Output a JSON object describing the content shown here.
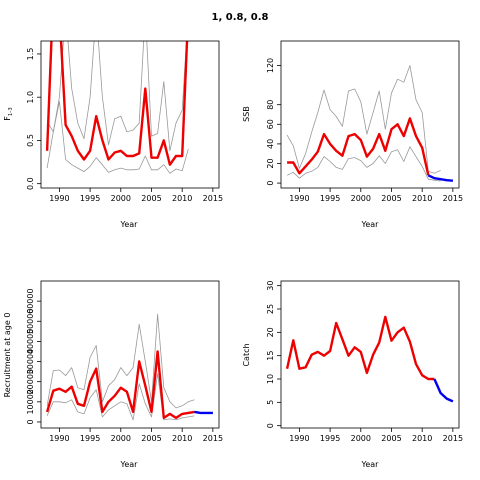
{
  "title": "1, 0.8, 0.8",
  "colors": {
    "estimate": "#ee0000",
    "projection": "#0000ee",
    "bounds": "#999999",
    "frame": "#000000"
  },
  "chart_data": [
    {
      "type": "line",
      "ylabel": "F",
      "ylabel_sub": "1–3",
      "xlabel": "Year",
      "xlim": [
        1987,
        2016
      ],
      "ylim": [
        -0.05,
        1.65
      ],
      "x_ticks": [
        1990,
        1995,
        2000,
        2005,
        2010,
        2015
      ],
      "y_ticks": [
        0.0,
        0.5,
        1.0,
        1.5
      ],
      "y_tick_labels": [
        "0.0",
        "0.5",
        "1.0",
        "1.5"
      ],
      "series": [
        {
          "role": "estimate",
          "x": [
            1988,
            1989,
            1990,
            1991,
            1992,
            1993,
            1994,
            1995,
            1996,
            1997,
            1998,
            1999,
            2000,
            2001,
            2002,
            2003,
            2004,
            2005,
            2006,
            2007,
            2008,
            2009,
            2010,
            2011
          ],
          "y": [
            0.38,
            2.2,
            2.0,
            0.68,
            0.55,
            0.38,
            0.28,
            0.38,
            0.78,
            0.5,
            0.28,
            0.36,
            0.38,
            0.32,
            0.32,
            0.35,
            1.1,
            0.3,
            0.3,
            0.5,
            0.22,
            0.32,
            0.32,
            2.0
          ]
        },
        {
          "role": "upper",
          "x": [
            1988,
            1989,
            1990,
            1991,
            1992,
            1993,
            1994,
            1995,
            1996,
            1997,
            1998,
            1999,
            2000,
            2001,
            2002,
            2003,
            2004,
            2005,
            2006,
            2007,
            2008,
            2009,
            2010,
            2011
          ],
          "y": [
            0.72,
            0.6,
            1.0,
            2.0,
            1.1,
            0.7,
            0.52,
            1.0,
            2.0,
            1.0,
            0.45,
            0.75,
            0.78,
            0.6,
            0.62,
            0.7,
            2.0,
            0.55,
            0.58,
            1.18,
            0.38,
            0.7,
            0.85,
            2.0
          ]
        },
        {
          "role": "lower",
          "x": [
            1988,
            1989,
            1990,
            1991,
            1992,
            1993,
            1994,
            1995,
            1996,
            1997,
            1998,
            1999,
            2000,
            2001,
            2002,
            2003,
            2004,
            2005,
            2006,
            2007,
            2008,
            2009,
            2010,
            2011
          ],
          "y": [
            0.18,
            0.6,
            0.95,
            0.28,
            0.22,
            0.18,
            0.14,
            0.2,
            0.3,
            0.22,
            0.13,
            0.16,
            0.18,
            0.16,
            0.16,
            0.17,
            0.32,
            0.16,
            0.16,
            0.22,
            0.12,
            0.17,
            0.15,
            0.4
          ]
        }
      ]
    },
    {
      "type": "line",
      "ylabel": "SSB",
      "xlabel": "Year",
      "xlim": [
        1987,
        2016
      ],
      "ylim": [
        -5,
        145
      ],
      "x_ticks": [
        1990,
        1995,
        2000,
        2005,
        2010,
        2015
      ],
      "y_ticks": [
        0,
        20,
        40,
        60,
        80,
        120
      ],
      "y_tick_labels": [
        "0",
        "20",
        "40",
        "60",
        "80",
        "120"
      ],
      "series": [
        {
          "role": "estimate",
          "x": [
            1988,
            1989,
            1990,
            1991,
            1992,
            1993,
            1994,
            1995,
            1996,
            1997,
            1998,
            1999,
            2000,
            2001,
            2002,
            2003,
            2004,
            2005,
            2006,
            2007,
            2008,
            2009,
            2010,
            2011
          ],
          "y": [
            21,
            21,
            10,
            17,
            24,
            32,
            50,
            40,
            33,
            28,
            48,
            50,
            44,
            27,
            35,
            50,
            33,
            55,
            60,
            48,
            66,
            48,
            36,
            8
          ]
        },
        {
          "role": "projection",
          "x": [
            2011,
            2012,
            2013,
            2014,
            2015
          ],
          "y": [
            8,
            5,
            4,
            3,
            2.5
          ]
        },
        {
          "role": "upper",
          "x": [
            1988,
            1989,
            1990,
            1991,
            1992,
            1993,
            1994,
            1995,
            1996,
            1997,
            1998,
            1999,
            2000,
            2001,
            2002,
            2003,
            2004,
            2005,
            2006,
            2007,
            2008,
            2009,
            2010,
            2011,
            2012,
            2013
          ],
          "y": [
            49,
            38,
            15,
            30,
            52,
            72,
            95,
            75,
            68,
            58,
            94,
            96,
            83,
            50,
            72,
            94,
            55,
            92,
            106,
            103,
            120,
            85,
            72,
            12,
            10,
            13
          ]
        },
        {
          "role": "lower",
          "x": [
            1988,
            1989,
            1990,
            1991,
            1992,
            1993,
            1994,
            1995,
            1996,
            1997,
            1998,
            1999,
            2000,
            2001,
            2002,
            2003,
            2004,
            2005,
            2006,
            2007,
            2008,
            2009,
            2010,
            2011,
            2012,
            2013
          ],
          "y": [
            8,
            11,
            5,
            10,
            12,
            16,
            27,
            22,
            16,
            14,
            25,
            26,
            23,
            16,
            20,
            28,
            20,
            32,
            34,
            22,
            37,
            27,
            17,
            4,
            3,
            2
          ]
        }
      ]
    },
    {
      "type": "line",
      "ylabel": "Recruitment at age 0",
      "xlabel": "Year",
      "xlim": [
        1987,
        2016
      ],
      "ylim": [
        -3000,
        70000
      ],
      "x_ticks": [
        1990,
        1995,
        2000,
        2005,
        2010,
        2015
      ],
      "y_ticks": [
        0,
        10000,
        20000,
        30000,
        40000,
        50000,
        60000
      ],
      "y_tick_labels": [
        "0",
        "10000",
        "20000",
        "30000",
        "40000",
        "50000",
        "60000"
      ],
      "series": [
        {
          "role": "estimate",
          "x": [
            1988,
            1989,
            1990,
            1991,
            1992,
            1993,
            1994,
            1995,
            1996,
            1997,
            1998,
            1999,
            2000,
            2001,
            2002,
            2003,
            2004,
            2005,
            2006,
            2007,
            2008,
            2009,
            2010,
            2011,
            2012
          ],
          "y": [
            5000,
            15500,
            16500,
            15000,
            17500,
            9000,
            8000,
            20000,
            26500,
            5000,
            10000,
            13000,
            17000,
            15000,
            5000,
            30000,
            18000,
            5000,
            35000,
            2000,
            4000,
            2000,
            4000,
            4500,
            5000
          ]
        },
        {
          "role": "projection",
          "x": [
            2012,
            2013,
            2014,
            2015
          ],
          "y": [
            5000,
            4500,
            4500,
            4500
          ]
        },
        {
          "role": "upper",
          "x": [
            1988,
            1989,
            1990,
            1991,
            1992,
            1993,
            1994,
            1995,
            1996,
            1997,
            1998,
            1999,
            2000,
            2001,
            2002,
            2003,
            2004,
            2005,
            2006,
            2007,
            2008,
            2009,
            2010,
            2011,
            2012
          ],
          "y": [
            8000,
            25500,
            25800,
            23000,
            27000,
            17000,
            16000,
            32000,
            38000,
            10000,
            18000,
            21000,
            27000,
            23000,
            27000,
            48500,
            30000,
            10000,
            53500,
            17000,
            10000,
            7000,
            8000,
            10000,
            11000
          ]
        },
        {
          "role": "lower",
          "x": [
            1988,
            1989,
            1990,
            1991,
            1992,
            1993,
            1994,
            1995,
            1996,
            1997,
            1998,
            1999,
            2000,
            2001,
            2002,
            2003,
            2004,
            2005,
            2006,
            2007,
            2008,
            2009,
            2010,
            2011,
            2012
          ],
          "y": [
            3000,
            10000,
            10000,
            9500,
            11000,
            5000,
            4000,
            12000,
            16000,
            2500,
            6000,
            8000,
            10000,
            9000,
            1000,
            19000,
            9000,
            2500,
            24000,
            1000,
            1500,
            1000,
            2000,
            2500,
            3000
          ]
        }
      ]
    },
    {
      "type": "line",
      "ylabel": "Catch",
      "xlabel": "Year",
      "xlim": [
        1987,
        2016
      ],
      "ylim": [
        -0.5,
        31
      ],
      "x_ticks": [
        1990,
        1995,
        2000,
        2005,
        2010,
        2015
      ],
      "y_ticks": [
        0,
        5,
        10,
        15,
        20,
        25,
        30
      ],
      "y_tick_labels": [
        "0",
        "5",
        "10",
        "15",
        "20",
        "25",
        "30"
      ],
      "series": [
        {
          "role": "estimate",
          "x": [
            1988,
            1989,
            1990,
            1991,
            1992,
            1993,
            1994,
            1995,
            1996,
            1997,
            1998,
            1999,
            2000,
            2001,
            2002,
            2003,
            2004,
            2005,
            2006,
            2007,
            2008,
            2009,
            2010,
            2011,
            2012
          ],
          "y": [
            12.2,
            18.3,
            12.2,
            12.5,
            15.2,
            15.8,
            15.0,
            16.0,
            22.0,
            18.5,
            15.0,
            16.8,
            15.8,
            11.3,
            15.2,
            17.8,
            23.3,
            18.2,
            20.0,
            21.0,
            18.0,
            13.2,
            10.8,
            10.0,
            10.0
          ]
        },
        {
          "role": "projection",
          "x": [
            2012,
            2013,
            2014,
            2015
          ],
          "y": [
            10.0,
            7.0,
            5.8,
            5.2
          ]
        }
      ]
    }
  ]
}
